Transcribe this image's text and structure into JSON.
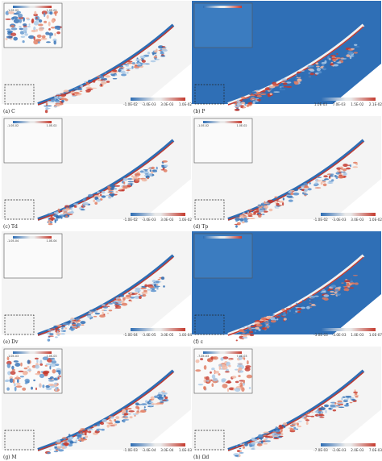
{
  "figure": {
    "panels": [
      {
        "id": "a",
        "caption": "(a) C",
        "colorbar": [
          "-1.0E-02",
          "-3.0E-03",
          "3.0E-03",
          "1.0E-02"
        ],
        "inset_colorbar": [
          "-1.0E-02",
          "1.0E-02"
        ],
        "bg_color": "#f4f4f4"
      },
      {
        "id": "b",
        "caption": "(b) P",
        "colorbar": [
          "1.0E-03",
          "7.0E-03",
          "1.5E-02",
          "2.1E-02"
        ],
        "inset_colorbar": [
          "",
          ""
        ],
        "bg_color": "#2f6fb6"
      },
      {
        "id": "c",
        "caption": "(c) Td",
        "colorbar": [
          "-1.0E-02",
          "-3.0E-03",
          "3.0E-03",
          "1.0E-02"
        ],
        "inset_colorbar": [
          "-1.0E-02",
          "1.0E-02"
        ],
        "bg_color": "#f4f4f4"
      },
      {
        "id": "d",
        "caption": "(d) Tp",
        "colorbar": [
          "-1.0E-02",
          "-3.0E-03",
          "3.0E-03",
          "1.0E-02"
        ],
        "inset_colorbar": [
          "-1.0E-02",
          "1.0E-02"
        ],
        "bg_color": "#f4f4f4"
      },
      {
        "id": "e",
        "caption": "(e) Dv",
        "colorbar": [
          "-1.0E-04",
          "-3.0E-05",
          "3.0E-05",
          "1.0E-04"
        ],
        "inset_colorbar": [
          "-1.0E-04",
          "1.0E-04"
        ],
        "bg_color": "#f4f4f4"
      },
      {
        "id": "f",
        "caption": "(f) ε",
        "colorbar": [
          "-3.0E-03",
          "-3.0E-03",
          "1.0E-03",
          "1.0E-07"
        ],
        "inset_colorbar": [
          "",
          ""
        ],
        "bg_color": "#2f6fb6"
      },
      {
        "id": "g",
        "caption": "(g) M",
        "colorbar": [
          "-1.0E-03",
          "-3.0E-04",
          "3.0E-04",
          "1.0E-03"
        ],
        "inset_colorbar": [
          "-1.0E-03",
          "1.0E-03"
        ],
        "bg_color": "#f4f4f4"
      },
      {
        "id": "h",
        "caption": "(h) Ωd",
        "colorbar": [
          "-7.0E-03",
          "-2.0E-03",
          "2.0E-03",
          "7.0E-03"
        ],
        "inset_colorbar": [
          "-7.0E-03",
          "7.0E-03"
        ],
        "bg_color": "#f4f4f4"
      }
    ]
  }
}
